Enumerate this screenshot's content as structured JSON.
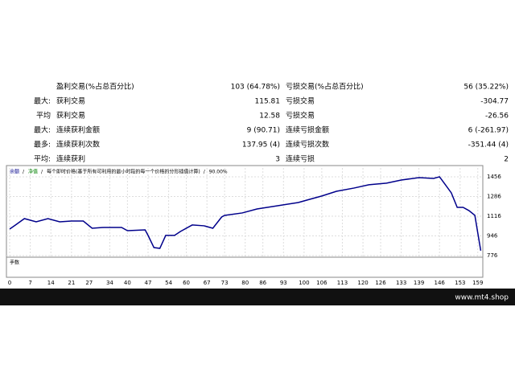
{
  "stats": {
    "rows": [
      [
        "",
        "盈利交易(%占总百分比)",
        "103 (64.78%)",
        "亏损交易(%占总百分比)",
        "56 (35.22%)"
      ],
      [
        "最大:",
        "获利交易",
        "115.81",
        "亏损交易",
        "-304.77"
      ],
      [
        "平均",
        "获利交易",
        "12.58",
        "亏损交易",
        "-26.56"
      ],
      [
        "最大:",
        "连续获利金额",
        "9 (90.71)",
        "连续亏损金额",
        "6 (-261.97)"
      ],
      [
        "最多:",
        "连续获利次数",
        "137.95 (4)",
        "连续亏损次数",
        "-351.44 (4)"
      ],
      [
        "平均:",
        "连续获利",
        "3",
        "连续亏损",
        "2"
      ]
    ]
  },
  "chart_data": {
    "type": "line",
    "legend": [
      "余额",
      "净值",
      "每个即时价格(基于所有可利用的最小时段的每一个价格的分形插值计算)",
      "90.00%"
    ],
    "lots_label": "手数",
    "series": [
      {
        "name": "余额",
        "color": "#00008b",
        "x": [
          0,
          2,
          5,
          9,
          13,
          17,
          21,
          25,
          28,
          32,
          38,
          40,
          46,
          47,
          49,
          51,
          53,
          56,
          58,
          62,
          66,
          69,
          72,
          73,
          79,
          84,
          91,
          98,
          106,
          111,
          117,
          122,
          128,
          133,
          139,
          144,
          146,
          148,
          150,
          152,
          154,
          156,
          158,
          159,
          160
        ],
        "values": [
          1005,
          1040,
          1095,
          1067,
          1095,
          1067,
          1074,
          1074,
          1012,
          1019,
          1019,
          991,
          998,
          950,
          845,
          838,
          950,
          950,
          984,
          1040,
          1033,
          1012,
          1109,
          1123,
          1144,
          1178,
          1206,
          1234,
          1290,
          1331,
          1359,
          1387,
          1401,
          1428,
          1449,
          1442,
          1456,
          1387,
          1317,
          1192,
          1192,
          1164,
          1123,
          970,
          818
        ]
      }
    ],
    "xlim": [
      -1.1,
      160.7
    ],
    "ylim": [
      762,
      1532
    ],
    "xticks": [
      0,
      7,
      14,
      21,
      27,
      34,
      40,
      47,
      54,
      60,
      67,
      73,
      80,
      86,
      93,
      100,
      106,
      113,
      120,
      126,
      133,
      139,
      146,
      153,
      159
    ],
    "yticks": [
      776,
      946,
      1116,
      1286,
      1456
    ],
    "grid": true
  },
  "footer": {
    "site": "www.mt4.shop"
  }
}
